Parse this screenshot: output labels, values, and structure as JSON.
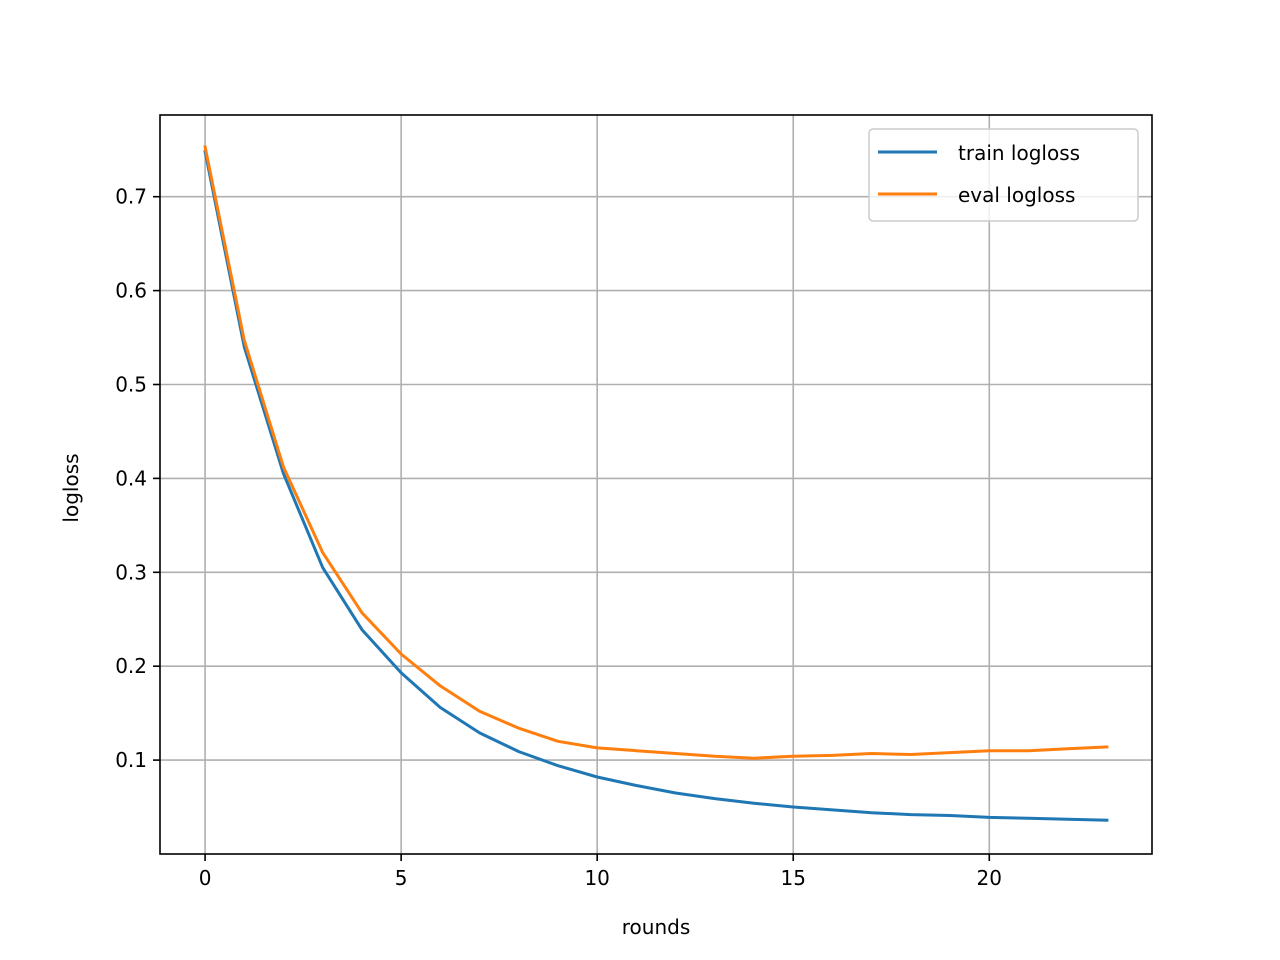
{
  "chart_data": {
    "type": "line",
    "title": "",
    "xlabel": "rounds",
    "ylabel": "logloss",
    "xlim": [
      -1.15,
      24.15
    ],
    "ylim": [
      0.0,
      0.787
    ],
    "xticks": [
      0,
      5,
      10,
      15,
      20
    ],
    "xtick_labels": [
      "0",
      "5",
      "10",
      "15",
      "20"
    ],
    "yticks": [
      0.1,
      0.2,
      0.3,
      0.4,
      0.5,
      0.6,
      0.7
    ],
    "ytick_labels": [
      "0.1",
      "0.2",
      "0.3",
      "0.4",
      "0.5",
      "0.6",
      "0.7"
    ],
    "grid": true,
    "legend_position": "upper right",
    "x": [
      0,
      1,
      2,
      3,
      4,
      5,
      6,
      7,
      8,
      9,
      10,
      11,
      12,
      13,
      14,
      15,
      16,
      17,
      18,
      19,
      20,
      21,
      22,
      23
    ],
    "series": [
      {
        "name": "train logloss",
        "color": "#1f77b4",
        "values": [
          0.748,
          0.54,
          0.405,
          0.305,
          0.239,
          0.193,
          0.156,
          0.129,
          0.109,
          0.094,
          0.082,
          0.073,
          0.065,
          0.059,
          0.054,
          0.05,
          0.047,
          0.044,
          0.042,
          0.041,
          0.039,
          0.038,
          0.037,
          0.036
        ]
      },
      {
        "name": "eval logloss",
        "color": "#ff7f0e",
        "values": [
          0.753,
          0.547,
          0.412,
          0.321,
          0.257,
          0.213,
          0.179,
          0.152,
          0.134,
          0.12,
          0.113,
          0.11,
          0.107,
          0.104,
          0.102,
          0.104,
          0.105,
          0.107,
          0.106,
          0.108,
          0.11,
          0.11,
          0.112,
          0.114
        ]
      }
    ]
  },
  "colors": {
    "grid": "#b0b0b0",
    "axes": "#000000",
    "legend_border": "#cccccc"
  }
}
